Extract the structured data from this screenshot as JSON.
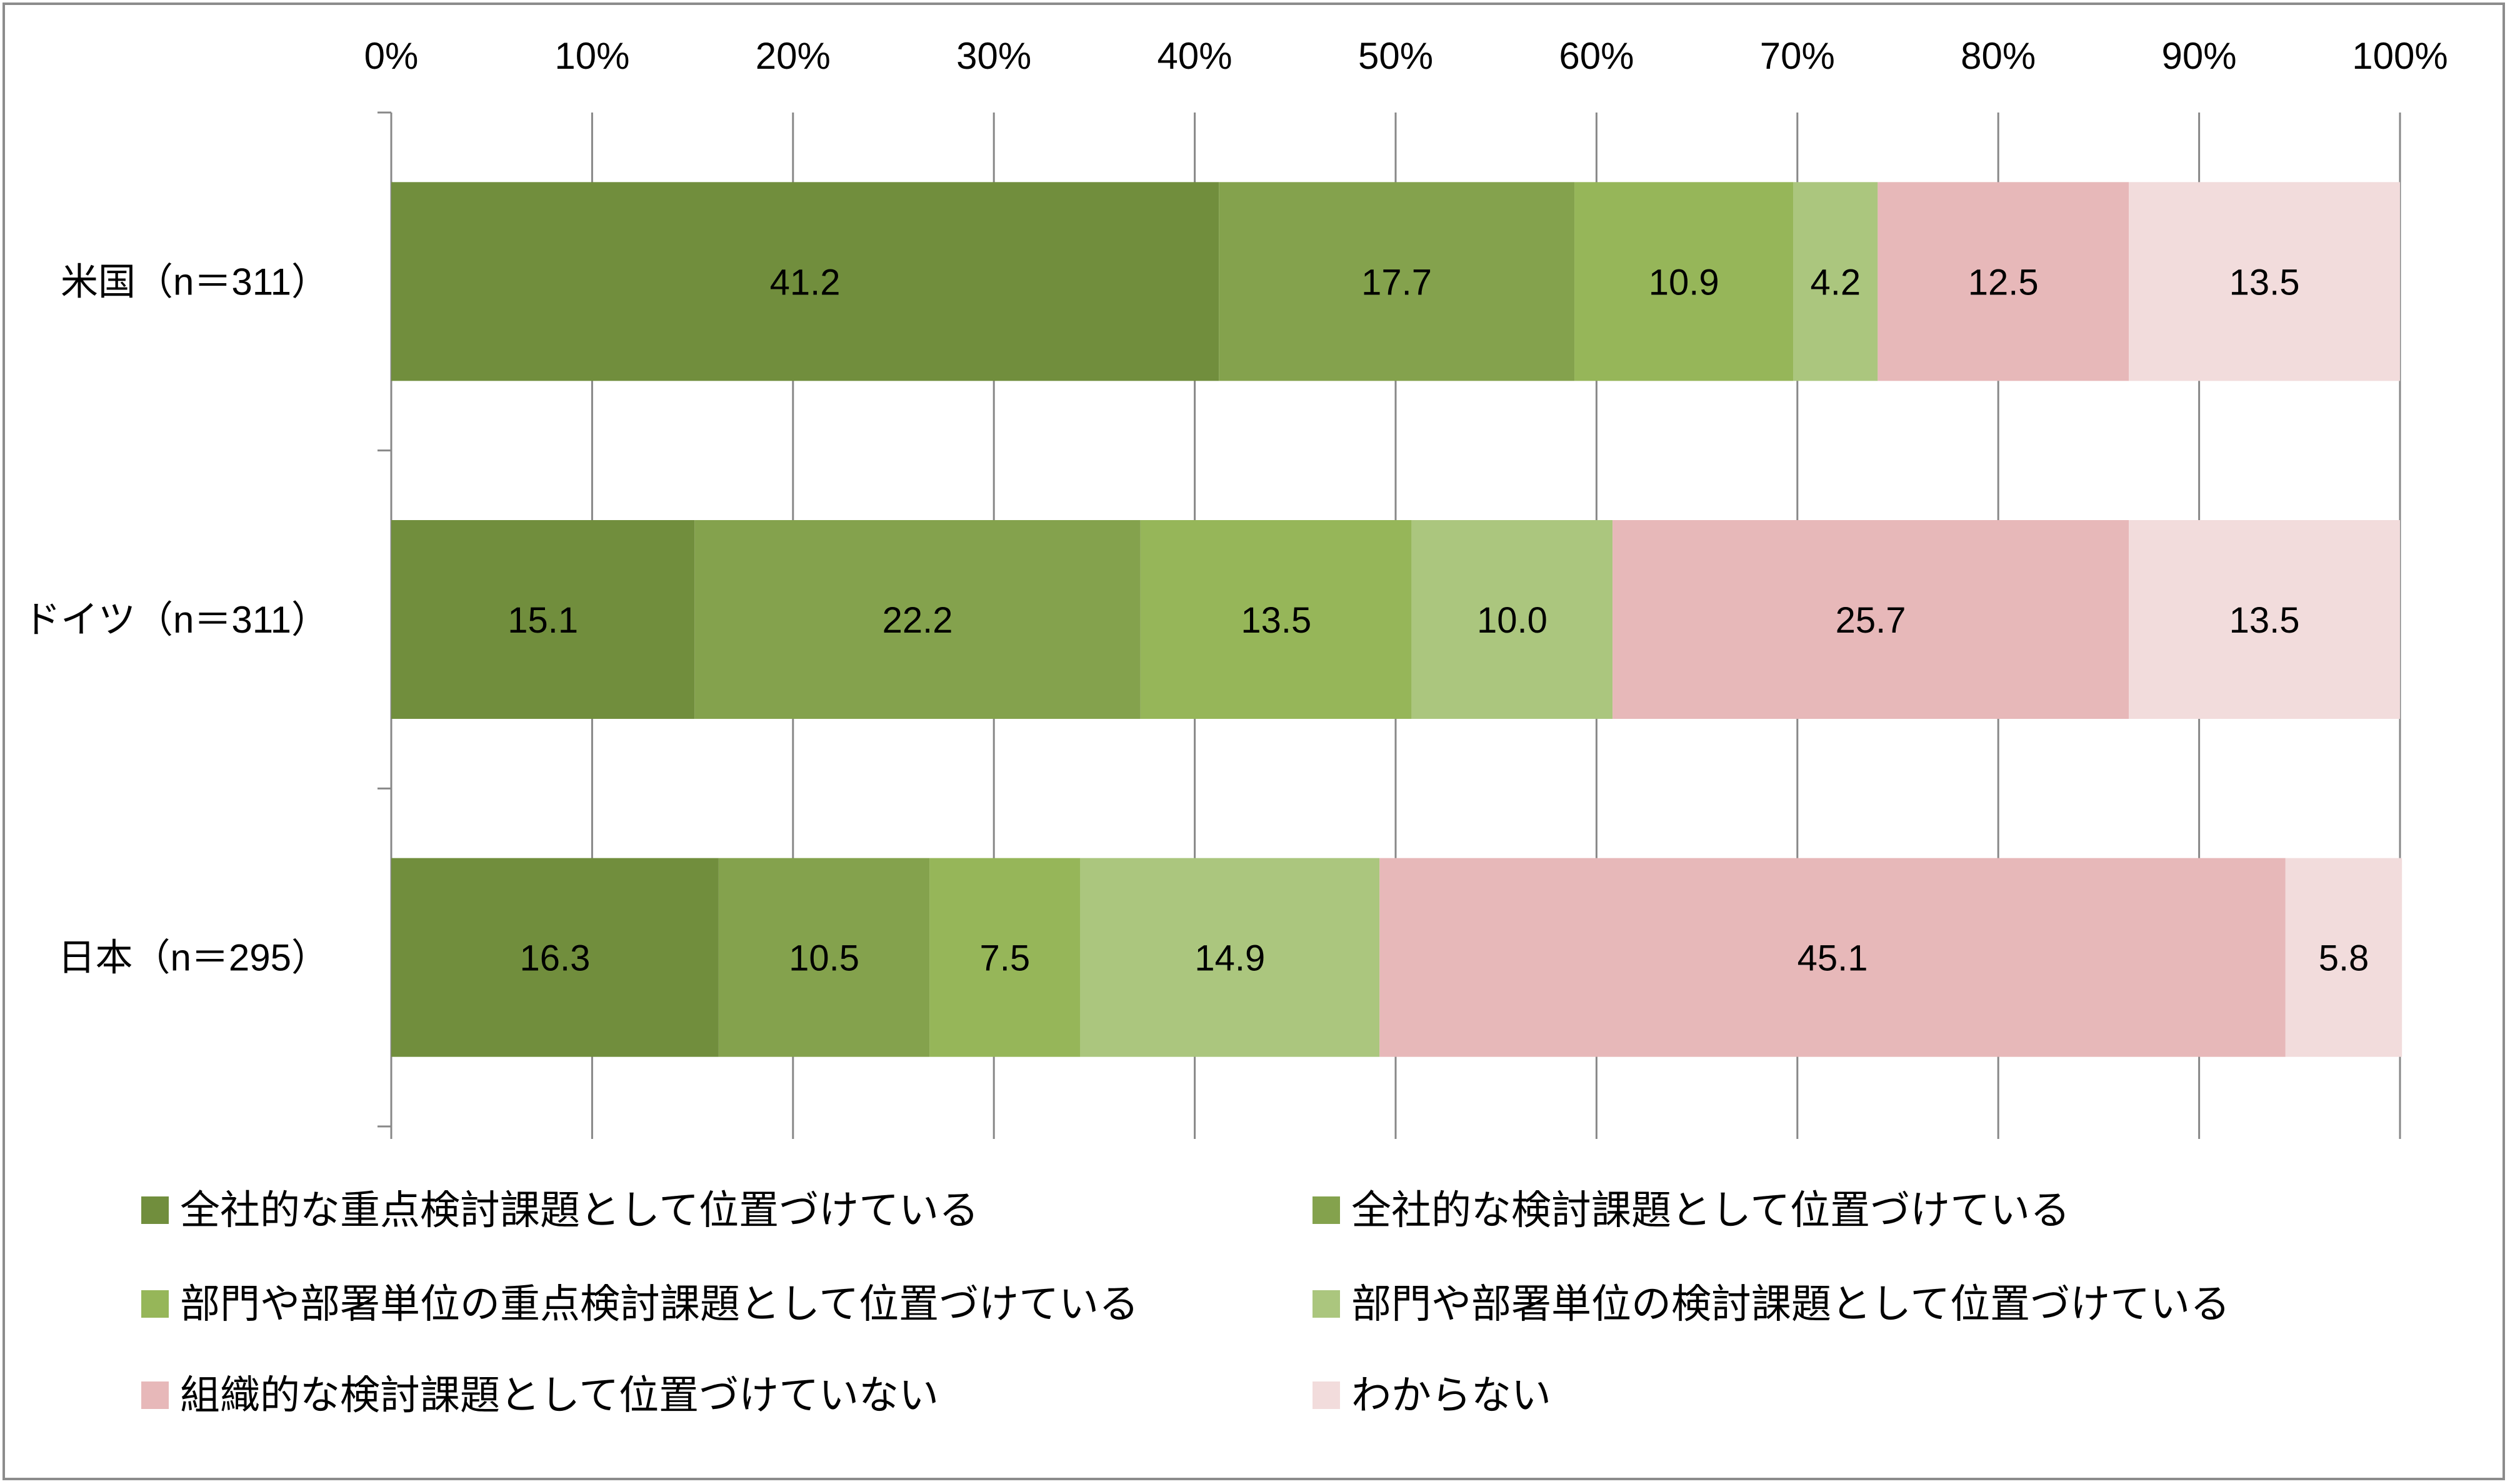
{
  "chart_data": {
    "type": "bar",
    "orientation": "horizontal",
    "stacked": "percent",
    "title": "",
    "xlabel": "",
    "ylabel": "",
    "xlim": [
      0,
      100
    ],
    "x_ticks": [
      "0%",
      "10%",
      "20%",
      "30%",
      "40%",
      "50%",
      "60%",
      "70%",
      "80%",
      "90%",
      "100%"
    ],
    "grid": true,
    "legend_position": "bottom",
    "categories": [
      "米国（n＝311）",
      "ドイツ（n＝311）",
      "日本（n＝295）"
    ],
    "series": [
      {
        "name": "全社的な重点検討課題として位置づけている",
        "color": "#718E3D",
        "values": [
          41.2,
          15.1,
          16.3
        ],
        "labels": [
          "41.2",
          "15.1",
          "16.3"
        ]
      },
      {
        "name": "全社的な検討課題として位置づけている",
        "color": "#84A24D",
        "values": [
          17.7,
          22.2,
          10.5
        ],
        "labels": [
          "17.7",
          "22.2",
          "10.5"
        ]
      },
      {
        "name": "部門や部署単位の重点検討課題として位置づけている",
        "color": "#96B659",
        "values": [
          10.9,
          13.5,
          7.5
        ],
        "labels": [
          "10.9",
          "13.5",
          "7.5"
        ]
      },
      {
        "name": "部門や部署単位の検討課題として位置づけている",
        "color": "#ABC67E",
        "values": [
          4.2,
          10.0,
          14.9
        ],
        "labels": [
          "4.2",
          "10.0",
          "14.9"
        ]
      },
      {
        "name": "組織的な検討課題として位置づけていない",
        "color": "#E7B8B9",
        "values": [
          12.5,
          25.7,
          45.1
        ],
        "labels": [
          "12.5",
          "25.7",
          "45.1"
        ]
      },
      {
        "name": "わからない",
        "color": "#F2DCDC",
        "values": [
          13.5,
          13.5,
          5.8
        ],
        "labels": [
          "13.5",
          "13.5",
          "5.8"
        ]
      }
    ]
  }
}
